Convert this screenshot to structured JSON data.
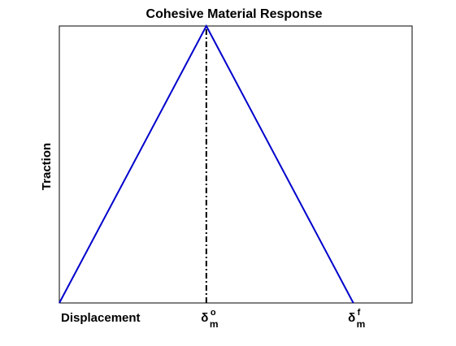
{
  "chart_data": {
    "type": "line",
    "title": "Cohesive Material Response",
    "xlabel": "",
    "ylabel": "Traction",
    "x_tick_labels": [
      {
        "x": 0,
        "base": "Displacement",
        "sup": "",
        "sub": ""
      },
      {
        "x": 1,
        "base": "δ",
        "sup": "o",
        "sub": "m"
      },
      {
        "x": 2,
        "base": "δ",
        "sup": "f",
        "sub": "m"
      }
    ],
    "xlim": [
      0,
      2.4
    ],
    "ylim": [
      0,
      1
    ],
    "series": [
      {
        "color": "#0000cc",
        "points": [
          [
            0,
            0
          ],
          [
            1,
            1
          ],
          [
            2,
            0
          ]
        ]
      }
    ],
    "reference_lines": [
      {
        "orientation": "vertical",
        "x": 1,
        "y_from": 0,
        "y_to": 1,
        "style": "dash-dot",
        "color": "#000000"
      }
    ],
    "grid": false,
    "legend": "none"
  }
}
